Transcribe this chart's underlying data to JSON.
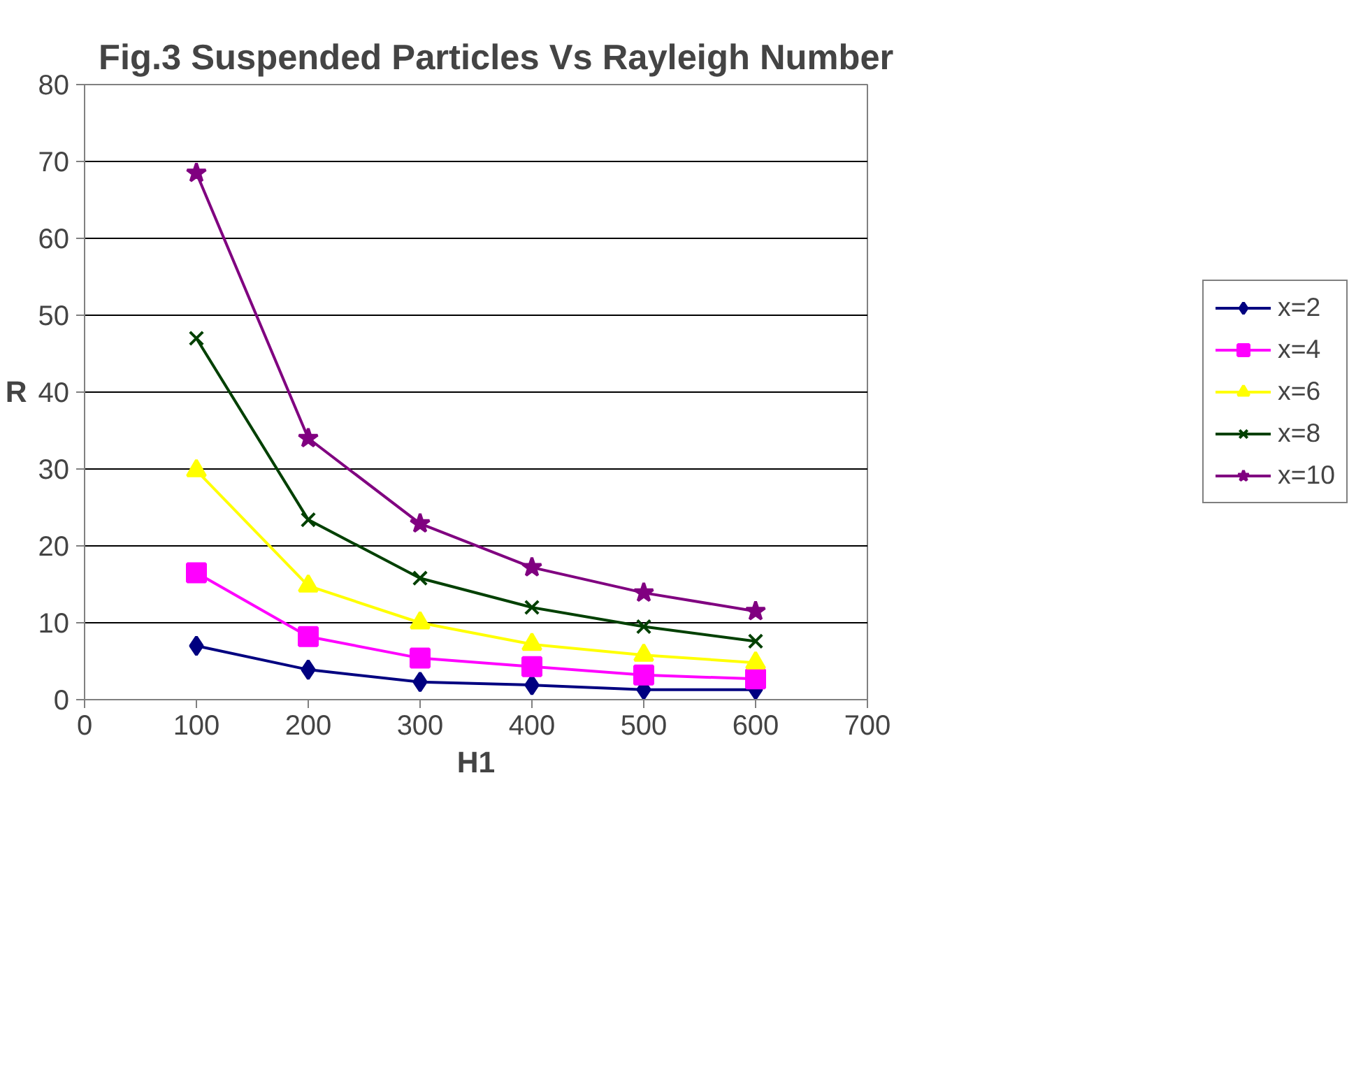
{
  "chart_data": {
    "type": "line",
    "title": "Fig.3 Suspended Particles Vs Rayleigh Number",
    "xlabel": "H1",
    "ylabel": "R",
    "x": [
      100,
      200,
      300,
      400,
      500,
      600
    ],
    "xlim": [
      0,
      700
    ],
    "xticks": [
      0,
      100,
      200,
      300,
      400,
      500,
      600,
      700
    ],
    "ylim": [
      0,
      80
    ],
    "yticks": [
      0,
      10,
      20,
      30,
      40,
      50,
      60,
      70,
      80
    ],
    "grid": "y",
    "legend": "right",
    "series": [
      {
        "name": "x=2",
        "color": "#000080",
        "marker": "diamond",
        "values": [
          7.0,
          3.9,
          2.3,
          1.9,
          1.3,
          1.3
        ]
      },
      {
        "name": "x=4",
        "color": "#ff00ff",
        "marker": "square",
        "values": [
          16.5,
          8.2,
          5.4,
          4.3,
          3.2,
          2.7
        ]
      },
      {
        "name": "x=6",
        "color": "#ffff00",
        "marker": "triangle",
        "values": [
          29.8,
          14.8,
          10.0,
          7.2,
          5.8,
          4.8
        ]
      },
      {
        "name": "x=8",
        "color": "#004000",
        "marker": "cross",
        "values": [
          47.0,
          23.4,
          15.8,
          12.0,
          9.5,
          7.6
        ]
      },
      {
        "name": "x=10",
        "color": "#800080",
        "marker": "star",
        "values": [
          68.5,
          34.0,
          22.9,
          17.2,
          13.9,
          11.5
        ]
      }
    ]
  }
}
